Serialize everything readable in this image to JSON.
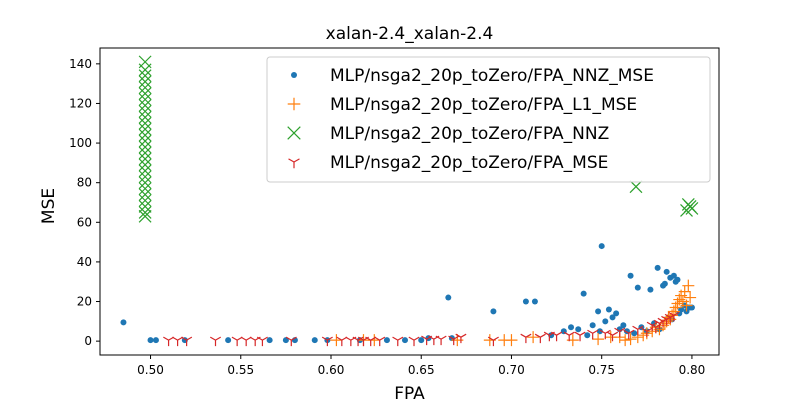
{
  "chart_data": {
    "type": "scatter",
    "title": "xalan-2.4_xalan-2.4",
    "xlabel": "FPA",
    "ylabel": "MSE",
    "xlim": [
      0.472,
      0.815
    ],
    "ylim": [
      -7,
      148
    ],
    "xticks": [
      0.5,
      0.55,
      0.6,
      0.65,
      0.7,
      0.75,
      0.8
    ],
    "xtick_labels": [
      "0.50",
      "0.55",
      "0.60",
      "0.65",
      "0.70",
      "0.75",
      "0.80"
    ],
    "yticks": [
      0,
      20,
      40,
      60,
      80,
      100,
      120,
      140
    ],
    "ytick_labels": [
      "0",
      "20",
      "40",
      "60",
      "80",
      "100",
      "120",
      "140"
    ],
    "grid": false,
    "legend_position": "top-right",
    "series": [
      {
        "name": "MLP/nsga2_20p_toZero/FPA_NNZ_MSE",
        "marker": "dot",
        "color": "#1f77b4",
        "points": [
          [
            0.485,
            9.5
          ],
          [
            0.5,
            0.5
          ],
          [
            0.503,
            0.5
          ],
          [
            0.519,
            0.5
          ],
          [
            0.543,
            0.5
          ],
          [
            0.566,
            0.5
          ],
          [
            0.575,
            0.5
          ],
          [
            0.58,
            0.5
          ],
          [
            0.591,
            0.5
          ],
          [
            0.598,
            0.5
          ],
          [
            0.616,
            0.5
          ],
          [
            0.631,
            0.5
          ],
          [
            0.641,
            0.5
          ],
          [
            0.65,
            0.5
          ],
          [
            0.654,
            1.5
          ],
          [
            0.665,
            22
          ],
          [
            0.667,
            1.5
          ],
          [
            0.69,
            15
          ],
          [
            0.708,
            20
          ],
          [
            0.713,
            20
          ],
          [
            0.722,
            3
          ],
          [
            0.729,
            5
          ],
          [
            0.733,
            7
          ],
          [
            0.737,
            6
          ],
          [
            0.74,
            24
          ],
          [
            0.742,
            3
          ],
          [
            0.745,
            8
          ],
          [
            0.748,
            15
          ],
          [
            0.749,
            5
          ],
          [
            0.75,
            48
          ],
          [
            0.752,
            10
          ],
          [
            0.754,
            16
          ],
          [
            0.756,
            12
          ],
          [
            0.758,
            14
          ],
          [
            0.76,
            6
          ],
          [
            0.762,
            8
          ],
          [
            0.764,
            5
          ],
          [
            0.766,
            33
          ],
          [
            0.768,
            4
          ],
          [
            0.77,
            27
          ],
          [
            0.772,
            7
          ],
          [
            0.775,
            5
          ],
          [
            0.777,
            26
          ],
          [
            0.779,
            9
          ],
          [
            0.781,
            37
          ],
          [
            0.782,
            6
          ],
          [
            0.784,
            28
          ],
          [
            0.785,
            29
          ],
          [
            0.786,
            35
          ],
          [
            0.787,
            12
          ],
          [
            0.788,
            32
          ],
          [
            0.789,
            11
          ],
          [
            0.79,
            33
          ],
          [
            0.791,
            30
          ],
          [
            0.792,
            31
          ],
          [
            0.793,
            14
          ],
          [
            0.794,
            16
          ],
          [
            0.796,
            18
          ],
          [
            0.797,
            15
          ],
          [
            0.798,
            17
          ],
          [
            0.799,
            17
          ],
          [
            0.8,
            17
          ]
        ]
      },
      {
        "name": "MLP/nsga2_20p_toZero/FPA_L1_MSE",
        "marker": "plus",
        "color": "#ff7f0e",
        "points": [
          [
            0.603,
            0.5
          ],
          [
            0.618,
            0.5
          ],
          [
            0.624,
            0.5
          ],
          [
            0.67,
            0.5
          ],
          [
            0.688,
            0.5
          ],
          [
            0.696,
            0.5
          ],
          [
            0.7,
            0.5
          ],
          [
            0.712,
            2
          ],
          [
            0.734,
            0.5
          ],
          [
            0.748,
            1
          ],
          [
            0.755,
            2
          ],
          [
            0.76,
            2
          ],
          [
            0.763,
            0.5
          ],
          [
            0.766,
            1
          ],
          [
            0.77,
            2
          ],
          [
            0.773,
            3
          ],
          [
            0.775,
            4
          ],
          [
            0.778,
            5
          ],
          [
            0.78,
            7
          ],
          [
            0.782,
            6
          ],
          [
            0.784,
            8
          ],
          [
            0.785,
            9
          ],
          [
            0.786,
            10
          ],
          [
            0.787,
            12
          ],
          [
            0.788,
            11
          ],
          [
            0.789,
            13
          ],
          [
            0.79,
            15
          ],
          [
            0.791,
            17
          ],
          [
            0.792,
            19
          ],
          [
            0.793,
            21
          ],
          [
            0.794,
            23
          ],
          [
            0.795,
            20
          ],
          [
            0.796,
            25
          ],
          [
            0.797,
            18
          ],
          [
            0.798,
            28
          ],
          [
            0.799,
            22
          ]
        ]
      },
      {
        "name": "MLP/nsga2_20p_toZero/FPA_NNZ",
        "marker": "x",
        "color": "#2ca02c",
        "points": [
          [
            0.497,
            141
          ],
          [
            0.497,
            137
          ],
          [
            0.497,
            134
          ],
          [
            0.497,
            131
          ],
          [
            0.497,
            128
          ],
          [
            0.497,
            125
          ],
          [
            0.497,
            122
          ],
          [
            0.497,
            119
          ],
          [
            0.497,
            116
          ],
          [
            0.497,
            113
          ],
          [
            0.497,
            110
          ],
          [
            0.497,
            107
          ],
          [
            0.497,
            104
          ],
          [
            0.497,
            101
          ],
          [
            0.497,
            98
          ],
          [
            0.497,
            95
          ],
          [
            0.497,
            92
          ],
          [
            0.497,
            89
          ],
          [
            0.497,
            86
          ],
          [
            0.497,
            83
          ],
          [
            0.497,
            80
          ],
          [
            0.497,
            77
          ],
          [
            0.497,
            74
          ],
          [
            0.497,
            71
          ],
          [
            0.497,
            68
          ],
          [
            0.497,
            65
          ],
          [
            0.497,
            63
          ],
          [
            0.769,
            78
          ],
          [
            0.797,
            66
          ],
          [
            0.798,
            69
          ],
          [
            0.799,
            68
          ],
          [
            0.8,
            67
          ]
        ]
      },
      {
        "name": "MLP/nsga2_20p_toZero/FPA_MSE",
        "marker": "tri_down",
        "color": "#d62728",
        "points": [
          [
            0.51,
            0.5
          ],
          [
            0.515,
            0.5
          ],
          [
            0.52,
            0.5
          ],
          [
            0.536,
            0.5
          ],
          [
            0.548,
            0.5
          ],
          [
            0.553,
            0.5
          ],
          [
            0.558,
            0.5
          ],
          [
            0.562,
            0.5
          ],
          [
            0.578,
            0.5
          ],
          [
            0.598,
            0.5
          ],
          [
            0.606,
            0.5
          ],
          [
            0.611,
            0.5
          ],
          [
            0.615,
            0.5
          ],
          [
            0.618,
            0.5
          ],
          [
            0.622,
            0.5
          ],
          [
            0.627,
            0.5
          ],
          [
            0.637,
            0.5
          ],
          [
            0.646,
            0.5
          ],
          [
            0.653,
            1
          ],
          [
            0.657,
            1
          ],
          [
            0.661,
            1
          ],
          [
            0.668,
            1
          ],
          [
            0.672,
            2
          ],
          [
            0.69,
            0.5
          ],
          [
            0.708,
            2
          ],
          [
            0.716,
            2
          ],
          [
            0.721,
            3
          ],
          [
            0.725,
            3
          ],
          [
            0.732,
            3
          ],
          [
            0.738,
            3
          ],
          [
            0.745,
            4
          ],
          [
            0.752,
            4
          ],
          [
            0.756,
            3
          ],
          [
            0.76,
            5
          ],
          [
            0.765,
            4
          ],
          [
            0.77,
            6
          ],
          [
            0.775,
            5
          ],
          [
            0.778,
            8
          ],
          [
            0.78,
            7
          ],
          [
            0.782,
            9
          ],
          [
            0.784,
            10
          ],
          [
            0.786,
            11
          ],
          [
            0.788,
            12
          ],
          [
            0.79,
            13
          ]
        ]
      }
    ]
  }
}
